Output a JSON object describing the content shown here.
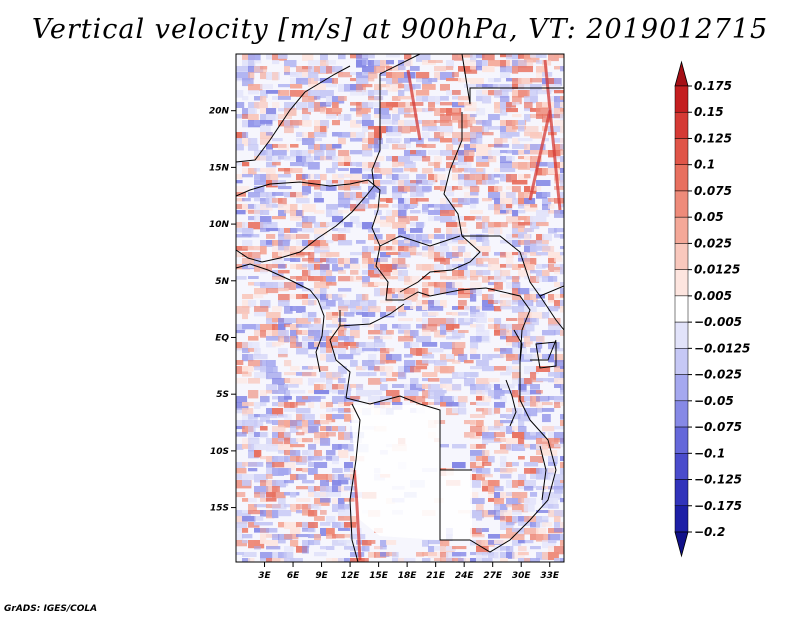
{
  "title": "Vertical velocity [m/s] at 900hPa, VT: 2019012715",
  "credit": "GrADS: IGES/COLA",
  "map": {
    "lat_labels": [
      "20N",
      "15N",
      "10N",
      "5N",
      "EQ",
      "5S",
      "10S",
      "15S"
    ],
    "lat_values": [
      20,
      15,
      10,
      5,
      0,
      -5,
      -10,
      -15
    ],
    "lon_labels": [
      "3E",
      "6E",
      "9E",
      "12E",
      "15E",
      "18E",
      "21E",
      "24E",
      "27E",
      "30E",
      "33E"
    ],
    "lon_values": [
      3,
      6,
      9,
      12,
      15,
      18,
      21,
      24,
      27,
      30,
      33
    ],
    "lon_range": [
      0,
      34.5
    ],
    "lat_range": [
      -19.8,
      25
    ]
  },
  "colorbar": {
    "labels": [
      "0.175",
      "0.15",
      "0.125",
      "0.1",
      "0.075",
      "0.05",
      "0.025",
      "0.0125",
      "0.005",
      "−0.005",
      "−0.0125",
      "−0.025",
      "−0.05",
      "−0.075",
      "−0.1",
      "−0.125",
      "−0.175",
      "−0.2"
    ],
    "colors": [
      "#a50f15",
      "#c41e20",
      "#d53a35",
      "#e05548",
      "#e8705f",
      "#ee8b7a",
      "#f4a898",
      "#f9c8bd",
      "#fde5df",
      "#ffffff",
      "#e2e3fa",
      "#c6c8f5",
      "#a5a8ef",
      "#8689e6",
      "#6568da",
      "#4a4ccc",
      "#3133bb",
      "#1d1fa6",
      "#11118a"
    ]
  }
}
